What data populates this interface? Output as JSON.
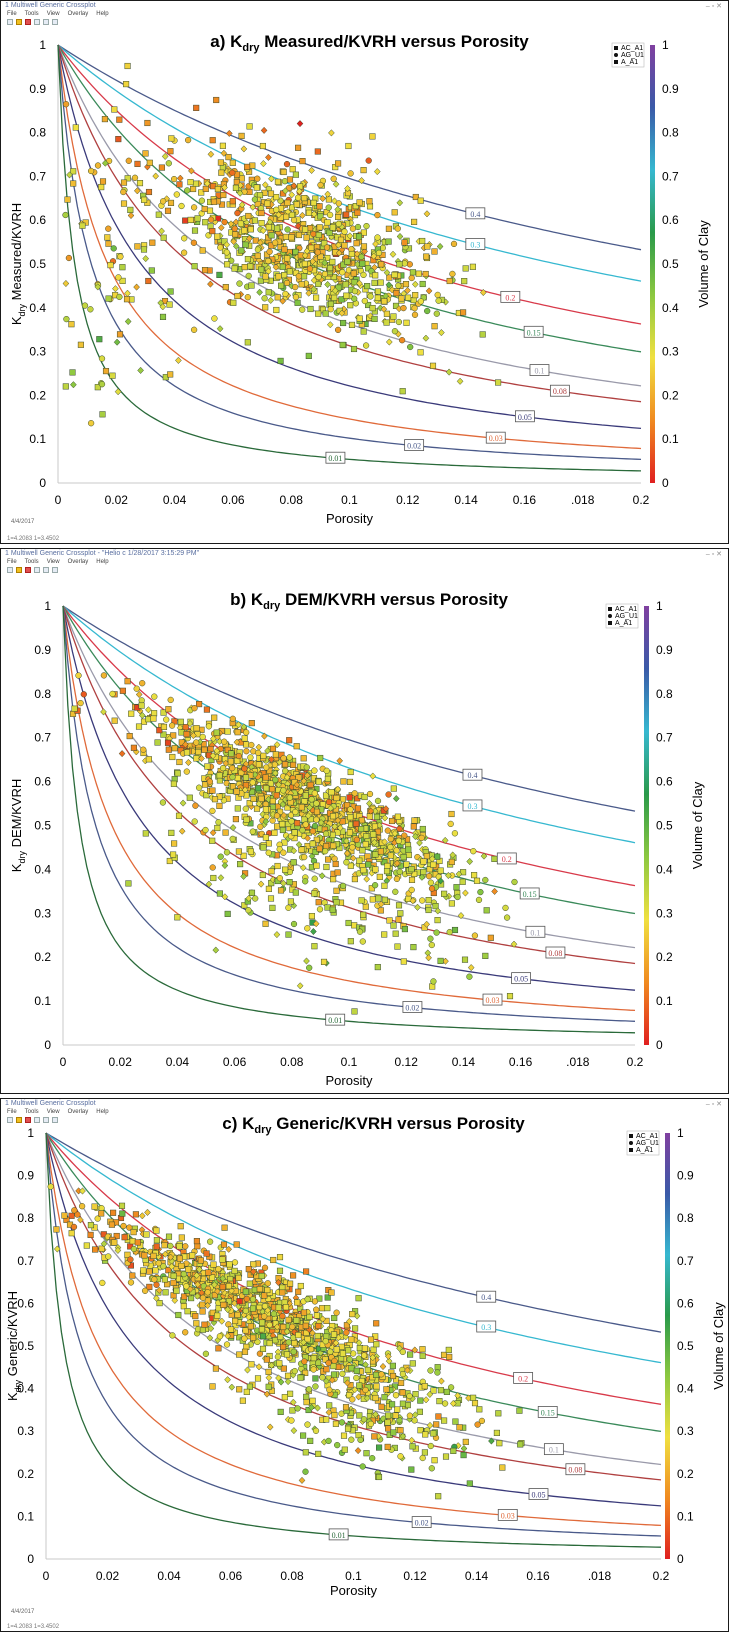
{
  "panels": [
    {
      "window_title": "1 Multiwell Generic Crossplot",
      "menu": [
        "File",
        "Tools",
        "View",
        "Overlay",
        "Help"
      ],
      "footnote": "4/4/2017",
      "status": "1=4.2083 1=3.4502"
    },
    {
      "window_title": "1 Multiwell Generic Crossplot - \"Helio c 1/28/2017 3:15:29 PM\"",
      "menu": [
        "File",
        "Tools",
        "View",
        "Overlay",
        "Help"
      ],
      "footnote": "",
      "status": ""
    },
    {
      "window_title": "1 Multiwell Generic Crossplot",
      "menu": [
        "File",
        "Tools",
        "View",
        "Overlay",
        "Help"
      ],
      "footnote": "4/4/2017",
      "status": "1=4.2083 1=3.4502"
    }
  ],
  "chart_data": [
    {
      "type": "scatter",
      "title_letter": "a)",
      "title_sub": "dry",
      "title_rest": "Measured/KVRH versus Porosity",
      "xlabel": "Porosity",
      "ylabel_sub": "dry",
      "ylabel_rest": "Measured/KVRH",
      "xlim": [
        0,
        0.2
      ],
      "ylim": [
        0,
        1
      ],
      "x_ticks": [
        "0",
        "0.02",
        "0.04",
        "0.06",
        "0.08",
        "0.1",
        "0.12",
        "0.14",
        "0.16",
        ".018",
        "0.2"
      ],
      "y_ticks": [
        "0",
        "0.1",
        "0.2",
        "0.3",
        "0.4",
        "0.5",
        "0.6",
        "0.7",
        "0.8",
        "0.9",
        "1"
      ],
      "colorbar_label": "Volume of Clay",
      "colorbar_ticks": [
        "0",
        "0.1",
        "0.2",
        "0.3",
        "0.4",
        "0.5",
        "0.6",
        "0.7",
        "0.8",
        "0.9",
        "1"
      ],
      "legend": [
        "AC_A1",
        "AG_U1",
        "A_A1"
      ],
      "curve_labels": [
        "0.4",
        "0.3",
        "0.2",
        "0.15",
        "0.1",
        "0.08",
        "0.05",
        "0.03",
        "0.02",
        "0.01"
      ],
      "cloud": [
        {
          "x": 0.085,
          "y": 0.55,
          "sx": 0.022,
          "sy": 0.09,
          "slope": -2.4,
          "n": 950
        },
        {
          "x": 0.02,
          "y": 0.5,
          "sx": 0.012,
          "sy": 0.16,
          "slope": 0.0,
          "n": 110
        }
      ]
    },
    {
      "type": "scatter",
      "title_letter": "b)",
      "title_sub": "dry",
      "title_rest": "DEM/KVRH versus Porosity",
      "xlabel": "Porosity",
      "ylabel_sub": "dry",
      "ylabel_rest": "DEM/KVRH",
      "xlim": [
        0,
        0.2
      ],
      "ylim": [
        0,
        1
      ],
      "x_ticks": [
        "0",
        "0.02",
        "0.04",
        "0.06",
        "0.08",
        "0.1",
        "0.12",
        "0.14",
        "0.16",
        ".018",
        "0.2"
      ],
      "y_ticks": [
        "0",
        "0.1",
        "0.2",
        "0.3",
        "0.4",
        "0.5",
        "0.6",
        "0.7",
        "0.8",
        "0.9",
        "1"
      ],
      "colorbar_label": "Volume of Clay",
      "colorbar_ticks": [
        "0",
        "0.1",
        "0.2",
        "0.3",
        "0.4",
        "0.5",
        "0.6",
        "0.7",
        "0.8",
        "0.9",
        "1"
      ],
      "legend": [
        "AC_A1",
        "AG_U1",
        "A_A1"
      ],
      "curve_labels": [
        "0.4",
        "0.3",
        "0.2",
        "0.15",
        "0.1",
        "0.08",
        "0.05",
        "0.03",
        "0.02",
        "0.01"
      ],
      "cloud": [
        {
          "x": 0.085,
          "y": 0.55,
          "sx": 0.028,
          "sy": 0.05,
          "slope": -3.3,
          "n": 1050
        },
        {
          "x": 0.09,
          "y": 0.38,
          "sx": 0.03,
          "sy": 0.1,
          "slope": -2.5,
          "n": 300
        }
      ]
    },
    {
      "type": "scatter",
      "title_letter": "c)",
      "title_sub": "dry",
      "title_rest": "Generic/KVRH versus Porosity",
      "xlabel": "Porosity",
      "ylabel_sub": "dry",
      "ylabel_rest": "Generic/KVRH",
      "xlim": [
        0,
        0.2
      ],
      "ylim": [
        0,
        1
      ],
      "x_ticks": [
        "0",
        "0.02",
        "0.04",
        "0.06",
        "0.08",
        "0.1",
        "0.12",
        "0.14",
        "0.16",
        ".018",
        "0.2"
      ],
      "y_ticks": [
        "0",
        "0.1",
        "0.2",
        "0.3",
        "0.4",
        "0.5",
        "0.6",
        "0.7",
        "0.8",
        "0.9",
        "1"
      ],
      "colorbar_label": "Volume of Clay",
      "colorbar_ticks": [
        "0",
        "0.1",
        "0.2",
        "0.3",
        "0.4",
        "0.5",
        "0.6",
        "0.7",
        "0.8",
        "0.9",
        "1"
      ],
      "legend": [
        "AC_A1",
        "AG_U1",
        "A_A1"
      ],
      "curve_labels": [
        "0.4",
        "0.3",
        "0.2",
        "0.15",
        "0.1",
        "0.08",
        "0.05",
        "0.03",
        "0.02",
        "0.01"
      ],
      "cloud": [
        {
          "x": 0.07,
          "y": 0.58,
          "sx": 0.028,
          "sy": 0.05,
          "slope": -3.5,
          "n": 1050
        },
        {
          "x": 0.1,
          "y": 0.36,
          "sx": 0.02,
          "sy": 0.07,
          "slope": -2.8,
          "n": 250
        }
      ]
    }
  ],
  "curve_colors": {
    "0.4": "#4a5a8a",
    "0.3": "#36b8d0",
    "0.2": "#d83a4a",
    "0.15": "#3a8a5a",
    "0.1": "#9a9aaa",
    "0.08": "#b04040",
    "0.05": "#3a3a7a",
    "0.03": "#e06a3a",
    "0.02": "#4a5a8a",
    "0.01": "#2a6a3a"
  },
  "colorbar_stops": [
    "#e02020",
    "#f08a20",
    "#f0e040",
    "#8cc840",
    "#2a9a4a",
    "#36b8d0",
    "#3a5aa8",
    "#8040a0"
  ]
}
